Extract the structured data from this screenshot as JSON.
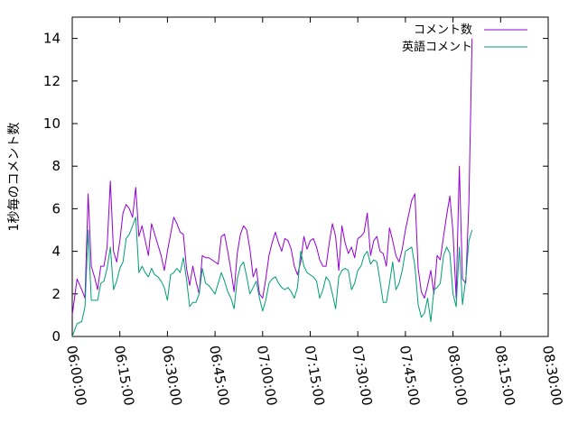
{
  "chart_data": {
    "type": "line",
    "ylabel": "1秒毎のコメント数",
    "xlabel": "",
    "ylim": [
      0,
      15
    ],
    "yticks": [
      0,
      2,
      4,
      6,
      8,
      10,
      12,
      14
    ],
    "xticks": [
      "06:00:00",
      "06:15:00",
      "06:30:00",
      "06:45:00",
      "07:00:00",
      "07:15:00",
      "07:30:00",
      "07:45:00",
      "08:00:00",
      "08:15:00",
      "08:30:00"
    ],
    "x_unit": "minutes from 06:00:00",
    "xlim": [
      0,
      150
    ],
    "legend_position": "top-right",
    "series": [
      {
        "name": "コメント数",
        "color": "#9400d3",
        "points": [
          [
            0,
            1
          ],
          [
            1.5,
            2.7
          ],
          [
            3,
            2.2
          ],
          [
            4,
            1.8
          ],
          [
            5,
            6.7
          ],
          [
            6,
            3.3
          ],
          [
            7,
            2.8
          ],
          [
            8,
            2.2
          ],
          [
            9,
            3.3
          ],
          [
            10,
            3.3
          ],
          [
            11,
            4.2
          ],
          [
            12,
            7.3
          ],
          [
            13,
            4.0
          ],
          [
            14,
            3.5
          ],
          [
            15,
            4.5
          ],
          [
            16,
            5.8
          ],
          [
            17,
            6.2
          ],
          [
            18,
            6.0
          ],
          [
            19,
            5.6
          ],
          [
            20,
            7.0
          ],
          [
            21,
            4.7
          ],
          [
            22,
            5.2
          ],
          [
            23,
            4.5
          ],
          [
            24,
            3.8
          ],
          [
            25,
            5.3
          ],
          [
            26,
            4.8
          ],
          [
            27,
            4.3
          ],
          [
            28,
            3.8
          ],
          [
            29,
            3.1
          ],
          [
            30,
            4.0
          ],
          [
            31,
            4.8
          ],
          [
            32,
            5.6
          ],
          [
            33,
            5.3
          ],
          [
            34,
            4.9
          ],
          [
            35,
            4.8
          ],
          [
            36,
            3.2
          ],
          [
            37,
            2.4
          ],
          [
            38,
            3.3
          ],
          [
            39,
            2.6
          ],
          [
            40,
            2.0
          ],
          [
            41,
            3.8
          ],
          [
            42,
            3.7
          ],
          [
            43,
            3.7
          ],
          [
            44,
            3.6
          ],
          [
            45,
            3.5
          ],
          [
            46,
            3.4
          ],
          [
            47,
            4.7
          ],
          [
            48,
            4.8
          ],
          [
            49,
            4.0
          ],
          [
            50,
            3.1
          ],
          [
            51,
            2.1
          ],
          [
            52,
            3.9
          ],
          [
            53,
            4.8
          ],
          [
            54,
            5.2
          ],
          [
            55,
            5.0
          ],
          [
            56,
            4.1
          ],
          [
            57,
            2.8
          ],
          [
            58,
            3.2
          ],
          [
            59,
            2.0
          ],
          [
            60,
            1.8
          ],
          [
            61,
            2.7
          ],
          [
            62,
            3.8
          ],
          [
            63,
            4.4
          ],
          [
            64,
            4.9
          ],
          [
            65,
            4.4
          ],
          [
            66,
            4.0
          ],
          [
            67,
            4.6
          ],
          [
            68,
            4.5
          ],
          [
            69,
            4.1
          ],
          [
            70,
            3.3
          ],
          [
            71,
            2.9
          ],
          [
            72,
            3.5
          ],
          [
            73,
            4.7
          ],
          [
            74,
            4.1
          ],
          [
            75,
            4.5
          ],
          [
            76,
            4.6
          ],
          [
            77,
            4.2
          ],
          [
            78,
            3.6
          ],
          [
            79,
            3.3
          ],
          [
            80,
            3.3
          ],
          [
            81,
            4.4
          ],
          [
            82,
            5.3
          ],
          [
            83,
            4.7
          ],
          [
            84,
            3.1
          ],
          [
            85,
            5.2
          ],
          [
            86,
            4.4
          ],
          [
            87,
            3.9
          ],
          [
            88,
            4.2
          ],
          [
            89,
            3.7
          ],
          [
            90,
            4.6
          ],
          [
            91,
            4.7
          ],
          [
            92,
            4.9
          ],
          [
            93,
            5.8
          ],
          [
            94,
            3.8
          ],
          [
            95,
            4.5
          ],
          [
            96,
            4.7
          ],
          [
            97,
            4.0
          ],
          [
            98,
            3.9
          ],
          [
            99,
            3.3
          ],
          [
            100,
            5.1
          ],
          [
            101,
            4.5
          ],
          [
            102,
            3.8
          ],
          [
            103,
            3.5
          ],
          [
            104,
            4.1
          ],
          [
            105,
            5.0
          ],
          [
            106,
            5.7
          ],
          [
            107,
            6.4
          ],
          [
            108,
            6.7
          ],
          [
            109,
            3.2
          ],
          [
            110,
            2.1
          ],
          [
            111,
            1.8
          ],
          [
            112,
            2.4
          ],
          [
            113,
            3.1
          ],
          [
            114,
            2.0
          ],
          [
            115,
            3.8
          ],
          [
            116,
            3.6
          ],
          [
            117,
            4.7
          ],
          [
            118,
            5.7
          ],
          [
            119,
            6.6
          ],
          [
            120,
            4.9
          ],
          [
            121,
            1.8
          ],
          [
            122,
            8.0
          ],
          [
            123,
            2.7
          ],
          [
            124,
            2.5
          ],
          [
            125,
            6.3
          ],
          [
            126,
            14.0
          ]
        ]
      },
      {
        "name": "英語コメント",
        "color": "#009e73",
        "points": [
          [
            0,
            0
          ],
          [
            1.5,
            0.6
          ],
          [
            3,
            0.7
          ],
          [
            4,
            1.4
          ],
          [
            5,
            5.0
          ],
          [
            6,
            1.7
          ],
          [
            7,
            1.7
          ],
          [
            8,
            1.7
          ],
          [
            9,
            2.5
          ],
          [
            10,
            2.6
          ],
          [
            11,
            3.2
          ],
          [
            12,
            4.2
          ],
          [
            13,
            2.2
          ],
          [
            14,
            2.6
          ],
          [
            15,
            3.2
          ],
          [
            16,
            3.5
          ],
          [
            17,
            4.6
          ],
          [
            18,
            4.8
          ],
          [
            19,
            5.2
          ],
          [
            20,
            5.6
          ],
          [
            21,
            3.0
          ],
          [
            22,
            3.3
          ],
          [
            23,
            3.0
          ],
          [
            24,
            2.8
          ],
          [
            25,
            3.2
          ],
          [
            26,
            2.9
          ],
          [
            27,
            2.8
          ],
          [
            28,
            2.6
          ],
          [
            29,
            2.3
          ],
          [
            30,
            1.7
          ],
          [
            31,
            2.9
          ],
          [
            32,
            3.0
          ],
          [
            33,
            3.2
          ],
          [
            34,
            3.0
          ],
          [
            35,
            3.7
          ],
          [
            36,
            2.7
          ],
          [
            37,
            1.4
          ],
          [
            38,
            1.6
          ],
          [
            39,
            1.6
          ],
          [
            40,
            2.0
          ],
          [
            41,
            3.2
          ],
          [
            42,
            2.5
          ],
          [
            43,
            2.4
          ],
          [
            44,
            2.2
          ],
          [
            45,
            2.0
          ],
          [
            46,
            2.5
          ],
          [
            47,
            3.0
          ],
          [
            48,
            2.6
          ],
          [
            49,
            2.1
          ],
          [
            50,
            1.8
          ],
          [
            51,
            1.3
          ],
          [
            52,
            2.7
          ],
          [
            53,
            3.3
          ],
          [
            54,
            3.5
          ],
          [
            55,
            2.8
          ],
          [
            56,
            2.0
          ],
          [
            57,
            2.3
          ],
          [
            58,
            2.6
          ],
          [
            59,
            1.8
          ],
          [
            60,
            1.2
          ],
          [
            61,
            1.7
          ],
          [
            62,
            2.5
          ],
          [
            63,
            2.7
          ],
          [
            64,
            2.8
          ],
          [
            65,
            2.5
          ],
          [
            66,
            2.3
          ],
          [
            67,
            2.2
          ],
          [
            68,
            2.3
          ],
          [
            69,
            2.1
          ],
          [
            70,
            1.8
          ],
          [
            71,
            2.3
          ],
          [
            72,
            4.0
          ],
          [
            73,
            3.3
          ],
          [
            74,
            3.0
          ],
          [
            75,
            2.9
          ],
          [
            76,
            2.8
          ],
          [
            77,
            2.6
          ],
          [
            78,
            1.8
          ],
          [
            79,
            2.2
          ],
          [
            80,
            2.8
          ],
          [
            81,
            2.6
          ],
          [
            82,
            2.0
          ],
          [
            83,
            1.3
          ],
          [
            84,
            2.8
          ],
          [
            85,
            3.1
          ],
          [
            86,
            3.2
          ],
          [
            87,
            3.1
          ],
          [
            88,
            2.2
          ],
          [
            89,
            2.5
          ],
          [
            90,
            3.1
          ],
          [
            91,
            3.3
          ],
          [
            92,
            3.8
          ],
          [
            93,
            4.0
          ],
          [
            94,
            3.4
          ],
          [
            95,
            3.6
          ],
          [
            96,
            3.5
          ],
          [
            97,
            2.6
          ],
          [
            98,
            1.6
          ],
          [
            99,
            1.6
          ],
          [
            100,
            2.5
          ],
          [
            101,
            3.5
          ],
          [
            102,
            2.2
          ],
          [
            103,
            2.5
          ],
          [
            104,
            3.1
          ],
          [
            105,
            4.0
          ],
          [
            106,
            4.1
          ],
          [
            107,
            4.2
          ],
          [
            108,
            3.3
          ],
          [
            109,
            1.5
          ],
          [
            110,
            0.9
          ],
          [
            111,
            1.1
          ],
          [
            112,
            1.8
          ],
          [
            113,
            0.7
          ],
          [
            114,
            2.2
          ],
          [
            115,
            2.3
          ],
          [
            116,
            2.5
          ],
          [
            117,
            3.8
          ],
          [
            118,
            4.2
          ],
          [
            119,
            3.9
          ],
          [
            120,
            2.0
          ],
          [
            121,
            1.4
          ],
          [
            122,
            4.2
          ],
          [
            123,
            1.5
          ],
          [
            124,
            2.7
          ],
          [
            125,
            4.5
          ],
          [
            126,
            5.0
          ]
        ]
      }
    ]
  }
}
